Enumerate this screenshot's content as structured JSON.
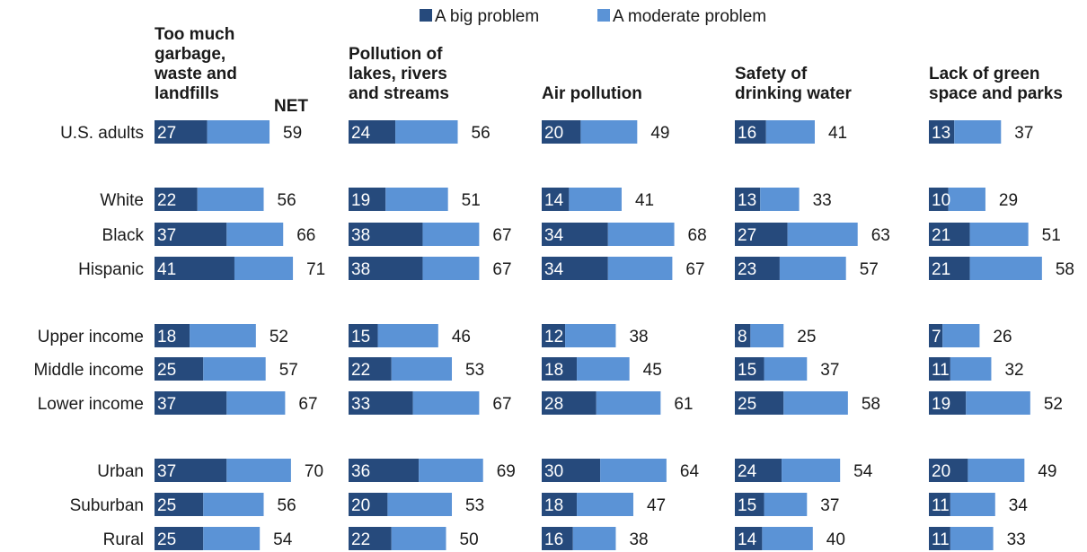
{
  "chart_data": {
    "type": "bar",
    "stacked": true,
    "orientation": "horizontal",
    "legend": {
      "placement": "top",
      "items": [
        {
          "name": "A big problem",
          "color": "#264a7c"
        },
        {
          "name": "A moderate problem",
          "color": "#5b93d6"
        }
      ]
    },
    "net_label": "NET",
    "categories": [
      "U.S. adults",
      "White",
      "Black",
      "Hispanic",
      "Upper income",
      "Middle income",
      "Lower income",
      "Urban",
      "Suburban",
      "Rural"
    ],
    "panels": [
      {
        "title_lines": [
          "Too much",
          "garbage,",
          "waste and",
          "landfills"
        ],
        "big": [
          27,
          22,
          37,
          41,
          18,
          25,
          37,
          37,
          25,
          25
        ],
        "net": [
          59,
          56,
          66,
          71,
          52,
          57,
          67,
          70,
          56,
          54
        ]
      },
      {
        "title_lines": [
          "Pollution of",
          "lakes, rivers",
          "and streams"
        ],
        "big": [
          24,
          19,
          38,
          38,
          15,
          22,
          33,
          36,
          20,
          22
        ],
        "net": [
          56,
          51,
          67,
          67,
          46,
          53,
          67,
          69,
          53,
          50
        ]
      },
      {
        "title_lines": [
          "Air pollution"
        ],
        "big": [
          20,
          14,
          34,
          34,
          12,
          18,
          28,
          30,
          18,
          16
        ],
        "net": [
          49,
          41,
          68,
          67,
          38,
          45,
          61,
          64,
          47,
          38
        ]
      },
      {
        "title_lines": [
          "Safety of",
          "drinking water"
        ],
        "big": [
          16,
          13,
          27,
          23,
          8,
          15,
          25,
          24,
          15,
          14
        ],
        "net": [
          41,
          33,
          63,
          57,
          25,
          37,
          58,
          54,
          37,
          40
        ]
      },
      {
        "title_lines": [
          "Lack of green",
          "space and parks"
        ],
        "big": [
          13,
          10,
          21,
          21,
          7,
          11,
          19,
          20,
          11,
          11
        ],
        "net": [
          37,
          29,
          51,
          58,
          26,
          32,
          52,
          49,
          34,
          33
        ]
      }
    ]
  }
}
